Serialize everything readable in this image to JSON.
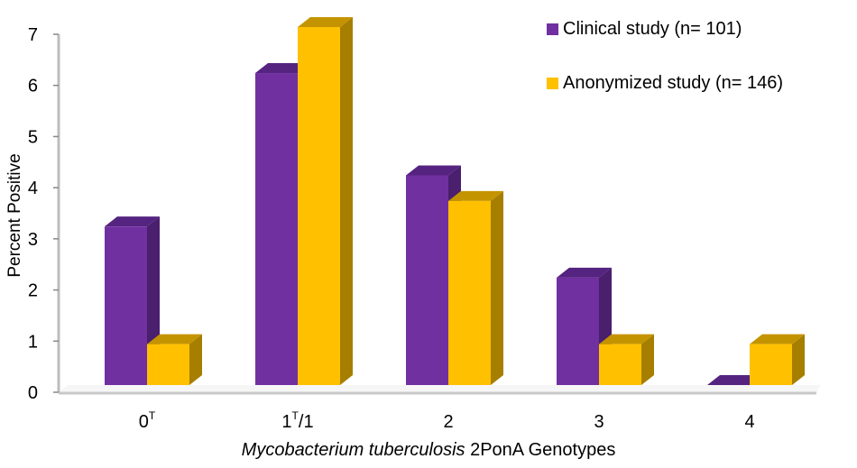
{
  "chart_data": {
    "type": "bar",
    "style": "3d-clustered-column",
    "title": "",
    "xlabel_italic": "Mycobacterium tuberculosis",
    "xlabel_rest": "2PonA Genotypes",
    "xlabel": "Mycobacterium tuberculosis 2PonA Genotypes",
    "ylabel": "Percent Positive",
    "ylim": [
      0,
      7
    ],
    "yticks": [
      0,
      1,
      2,
      3,
      4,
      5,
      6,
      7
    ],
    "grid": false,
    "legend_position": "top-right",
    "categories": [
      {
        "base": "0",
        "sup": "T",
        "rest": ""
      },
      {
        "base": "1",
        "sup": "T",
        "rest": "/1"
      },
      {
        "base": "2",
        "sup": "",
        "rest": ""
      },
      {
        "base": "3",
        "sup": "",
        "rest": ""
      },
      {
        "base": "4",
        "sup": "",
        "rest": ""
      }
    ],
    "category_labels": [
      "0T",
      "1T/1",
      "2",
      "3",
      "4"
    ],
    "series": [
      {
        "name": "Clinical study (n= 101)",
        "color": "#7030A0",
        "top_color": "#552380",
        "side_color": "#4A1F6E",
        "values": [
          3.1,
          6.1,
          4.1,
          2.1,
          0
        ]
      },
      {
        "name": "Anonymized study (n= 146)",
        "color": "#FFC000",
        "top_color": "#C49400",
        "side_color": "#A67E00",
        "values": [
          0.8,
          7.0,
          3.6,
          0.8,
          0.8
        ]
      }
    ]
  },
  "legend": {
    "items": [
      {
        "label": "Clinical study (n= 101)",
        "color": "#7030A0"
      },
      {
        "label": "Anonymized study (n= 146)",
        "color": "#FFC000"
      }
    ]
  }
}
